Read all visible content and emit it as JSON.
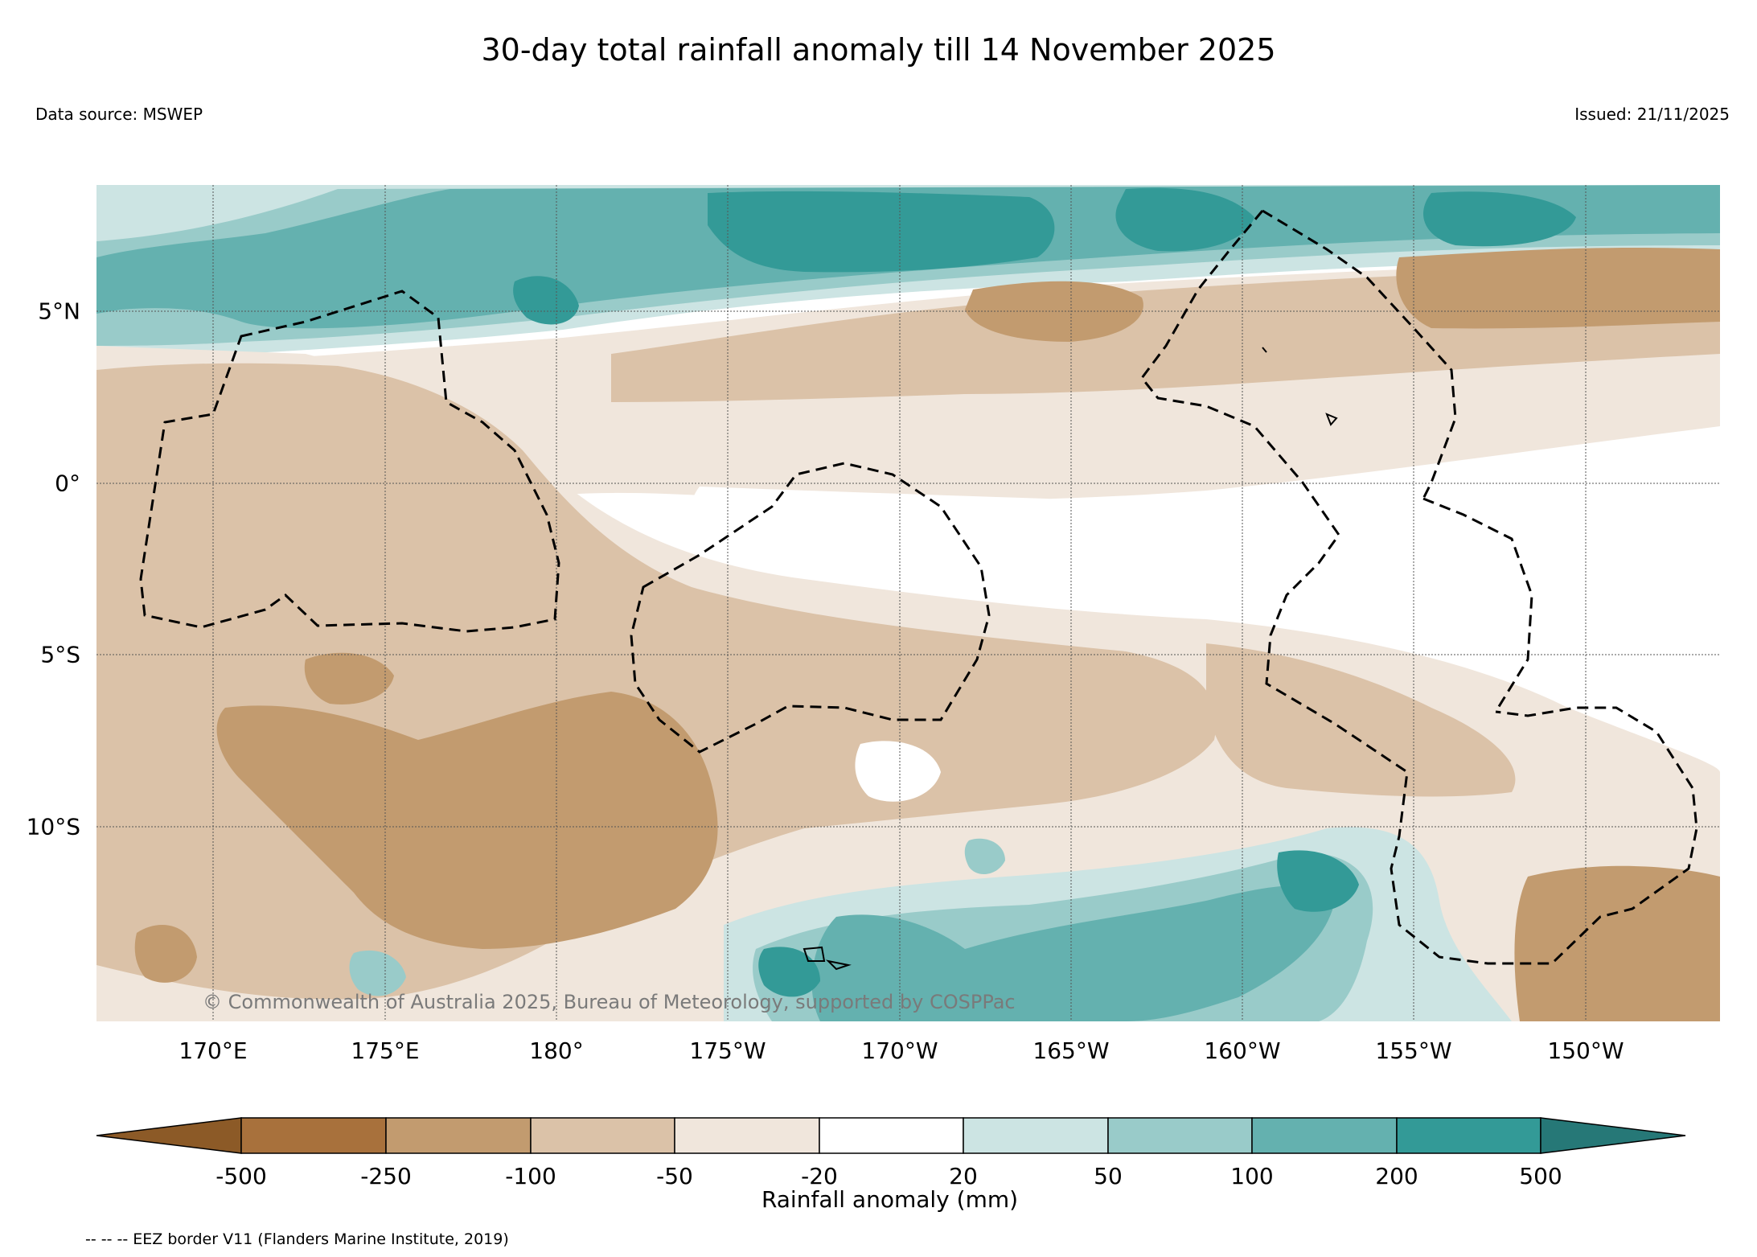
{
  "title": "30-day total rainfall anomaly till 14 November 2025",
  "data_source": "Data source: MSWEP",
  "issued": "Issued: 21/11/2025",
  "copyright": "© Commonwealth of Australia 2025, Bureau of Meteorology, supported by COSPPac",
  "map": {
    "lon_ticks": [
      "170°E",
      "175°E",
      "180°",
      "175°W",
      "170°W",
      "165°W",
      "160°W",
      "155°W",
      "150°W"
    ],
    "lat_ticks": [
      "5°N",
      "0°",
      "5°S",
      "10°S"
    ],
    "extent": {
      "lon_min": 166.6,
      "lon_max": 213.9,
      "lat_min": -15.8,
      "lat_max": 8.7
    }
  },
  "colorbar": {
    "label": "Rainfall anomaly (mm)",
    "ticks": [
      "-500",
      "-250",
      "-100",
      "-50",
      "-20",
      "20",
      "50",
      "100",
      "200",
      "500"
    ],
    "colors": [
      "#8c5a27",
      "#a8713c",
      "#c29b6f",
      "#dbc2a8",
      "#f0e6dc",
      "#ffffff",
      "#cce4e3",
      "#99cbc9",
      "#64b1af",
      "#339a97",
      "#267877"
    ]
  },
  "footnote": "-- -- -- EEZ border V11 (Flanders Marine Institute, 2019)"
}
